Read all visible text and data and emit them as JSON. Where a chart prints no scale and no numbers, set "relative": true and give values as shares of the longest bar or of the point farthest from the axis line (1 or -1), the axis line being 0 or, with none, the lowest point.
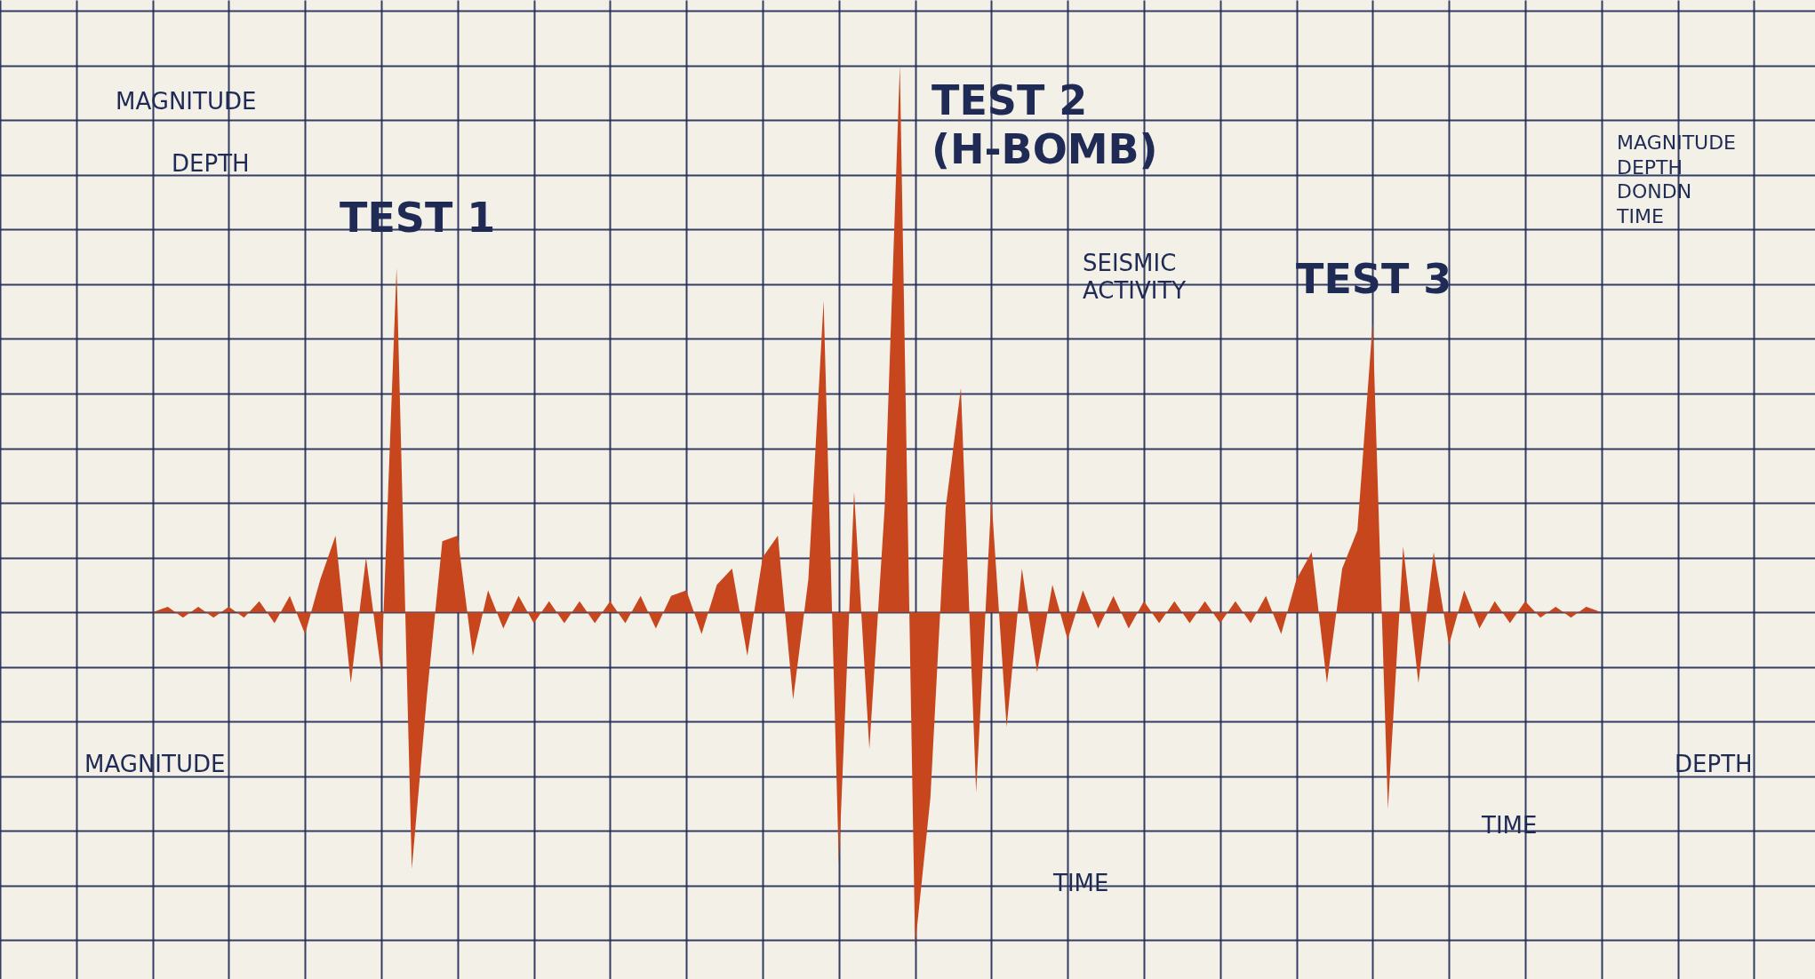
{
  "chart_data": {
    "type": "area",
    "relative": true,
    "grid": true,
    "categories": [
      null,
      null,
      null,
      null,
      null,
      null,
      null,
      null,
      null,
      null,
      null,
      null,
      null,
      null,
      null,
      null,
      null,
      null,
      null,
      null,
      null,
      null,
      null,
      null,
      null,
      null,
      null,
      null,
      null,
      null,
      null,
      null,
      null,
      null,
      null,
      null,
      null,
      null,
      null,
      null,
      null,
      null,
      null,
      null,
      null,
      null,
      null,
      null,
      null,
      null,
      null,
      null,
      null,
      null,
      null,
      null,
      null,
      null,
      null,
      null,
      null,
      null,
      null,
      null,
      null,
      null,
      null,
      null,
      null,
      null,
      null,
      null,
      null,
      null,
      null,
      null,
      null,
      null,
      null,
      null,
      null,
      null,
      null,
      null,
      null,
      null,
      null,
      null,
      null,
      null,
      null,
      null,
      null,
      null,
      null,
      null,
      null,
      null,
      null,
      null,
      null,
      null,
      null,
      null,
      null,
      null,
      null,
      null,
      null,
      null,
      null,
      null,
      null,
      null,
      null,
      null,
      null,
      null,
      null,
      null
    ],
    "values": [
      0,
      0,
      0,
      0,
      0,
      0,
      0,
      0,
      0,
      0,
      0,
      0.01,
      -0.01,
      0.01,
      -0.01,
      0.01,
      -0.01,
      0.02,
      -0.02,
      0.03,
      -0.04,
      0.06,
      0.14,
      -0.13,
      0.1,
      -0.11,
      0.63,
      -0.47,
      -0.15,
      0.13,
      0.14,
      -0.08,
      0.04,
      -0.03,
      0.03,
      -0.02,
      0.02,
      -0.02,
      0.02,
      -0.02,
      0.02,
      -0.02,
      0.03,
      -0.03,
      0.03,
      0.04,
      -0.04,
      0.05,
      0.08,
      -0.08,
      0.1,
      0.14,
      -0.16,
      0.06,
      0.57,
      -0.46,
      0.22,
      -0.25,
      0.19,
      1.0,
      -0.61,
      -0.34,
      0.19,
      0.41,
      -0.33,
      0.21,
      -0.21,
      0.08,
      -0.11,
      0.05,
      -0.05,
      0.04,
      -0.03,
      0.03,
      -0.03,
      0.02,
      -0.02,
      0.02,
      -0.02,
      0.02,
      -0.02,
      0.02,
      -0.02,
      0.03,
      -0.04,
      0.06,
      0.11,
      -0.13,
      0.08,
      0.15,
      0.53,
      -0.36,
      0.12,
      -0.13,
      0.11,
      -0.06,
      0.04,
      -0.03,
      0.02,
      -0.02,
      0.02,
      -0.01,
      0.01,
      -0.01,
      0.01,
      0,
      0,
      0,
      0,
      0,
      0,
      0,
      0,
      0,
      0,
      0,
      0,
      0,
      0,
      0
    ],
    "color": "#c8461e",
    "annotations": [
      "MAGNITUDE",
      "DEPTH",
      "TEST 1",
      "TEST 2\n(H-BOMB)",
      "SEISMIC\nACTIVITY",
      "TEST 3",
      "MAGNITUDE",
      "DEPTH",
      "DONDN",
      "TIME",
      "MAGNITUDE",
      "DEPTH",
      "TIME",
      "TIME"
    ]
  }
}
